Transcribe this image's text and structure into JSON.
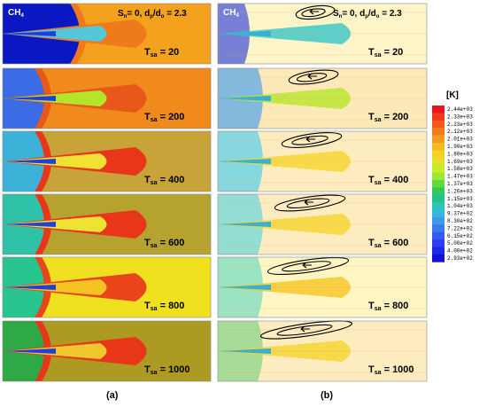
{
  "columns": [
    {
      "id": "a",
      "label": "(a)"
    },
    {
      "id": "b",
      "label": "(b)"
    }
  ],
  "header": {
    "fuel_main": "CH",
    "fuel_sub": "4",
    "params": {
      "s": "S",
      "s_sub": "n",
      "eq": "= 0, d",
      "p_sub": "p",
      "slash": "/d",
      "o_sub": "o",
      "val": "= 2.3"
    }
  },
  "panel_labels": [
    {
      "main": "T",
      "sub": "sa",
      "value": "= 20"
    },
    {
      "main": "T",
      "sub": "sa",
      "value": "= 200"
    },
    {
      "main": "T",
      "sub": "sa",
      "value": "= 400"
    },
    {
      "main": "T",
      "sub": "sa",
      "value": "= 600"
    },
    {
      "main": "T",
      "sub": "sa",
      "value": "= 800"
    },
    {
      "main": "T",
      "sub": "sa",
      "value": "= 1000"
    }
  ],
  "colorbar": {
    "unit": "[K]",
    "ticks": [
      "2.44e+03",
      "2.33e+03",
      "2.23e+03",
      "2.12e+03",
      "2.01e+03",
      "1.90e+03",
      "1.80e+03",
      "1.69e+03",
      "1.58e+03",
      "1.47e+03",
      "1.37e+03",
      "1.26e+03",
      "1.15e+03",
      "1.04e+03",
      "9.37e+02",
      "8.30e+02",
      "7.22e+02",
      "6.15e+02",
      "5.08e+02",
      "4.00e+02",
      "2.93e+02"
    ],
    "colors": [
      "#e8161b",
      "#f0371c",
      "#f45a1d",
      "#f47a1e",
      "#f59a1f",
      "#f5b821",
      "#f3d125",
      "#e3e22a",
      "#c6ec2e",
      "#9ee82f",
      "#62d83a",
      "#2fca58",
      "#22c28c",
      "#2cc4b9",
      "#36b8dc",
      "#3f99ea",
      "#3b79ec",
      "#335af0",
      "#2a3ef2",
      "#1f28e8",
      "#1212d6"
    ]
  },
  "panels_a": [
    {
      "bg": "#f4a11e",
      "hot": "#ee7a1b",
      "inner": "#54c7d9",
      "side": "#0a18c4"
    },
    {
      "bg": "#f08a1c",
      "hot": "#e8581b",
      "inner": "#b5e52a",
      "side": "#3b6ce6"
    },
    {
      "bg": "#c7a339",
      "hot": "#e8361b",
      "inner": "#f0e232",
      "side": "#3db2d8"
    },
    {
      "bg": "#b6a32f",
      "hot": "#e8361b",
      "inner": "#f0e232",
      "side": "#2fc2a8"
    },
    {
      "bg": "#efe11f",
      "hot": "#e8451b",
      "inner": "#f5c321",
      "side": "#27c58d"
    },
    {
      "bg": "#ad9a22",
      "hot": "#e8361b",
      "inner": "#f0c72c",
      "side": "#2fa945"
    }
  ],
  "panels_b": [
    {
      "bg": "#fdf4c8",
      "front": "#4959d8",
      "inner": "#36c5c8",
      "vort": true
    },
    {
      "bg": "#fde9b8",
      "front": "#58a8e8",
      "inner": "#b5e52a",
      "vort": true
    },
    {
      "bg": "#fdecc0",
      "front": "#5fd0e8",
      "inner": "#f5d42a",
      "vort": true
    },
    {
      "bg": "#fdecc0",
      "front": "#6fd8d8",
      "inner": "#f5d42a",
      "vort": true
    },
    {
      "bg": "#fdf6c2",
      "front": "#7adcc0",
      "inner": "#f5c621",
      "vort": true
    },
    {
      "bg": "#fdecc0",
      "front": "#8ad68a",
      "inner": "#f5d42a",
      "vort": true
    }
  ]
}
